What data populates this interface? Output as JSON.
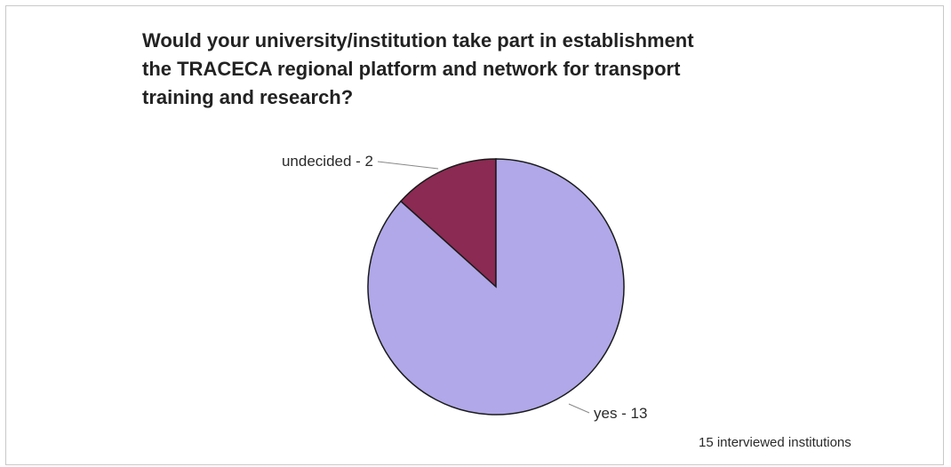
{
  "chart_data": {
    "type": "pie",
    "title_lines": [
      "Would your university/institution take part in establishment",
      "the TRACECA regional platform and network for transport",
      "training and research?"
    ],
    "slices": [
      {
        "label": "undecided - 2",
        "value": 2,
        "color": "#8b2a52"
      },
      {
        "label": "yes - 13",
        "value": 13,
        "color": "#b0a8e8"
      }
    ],
    "note": "15 interviewed institutions"
  }
}
